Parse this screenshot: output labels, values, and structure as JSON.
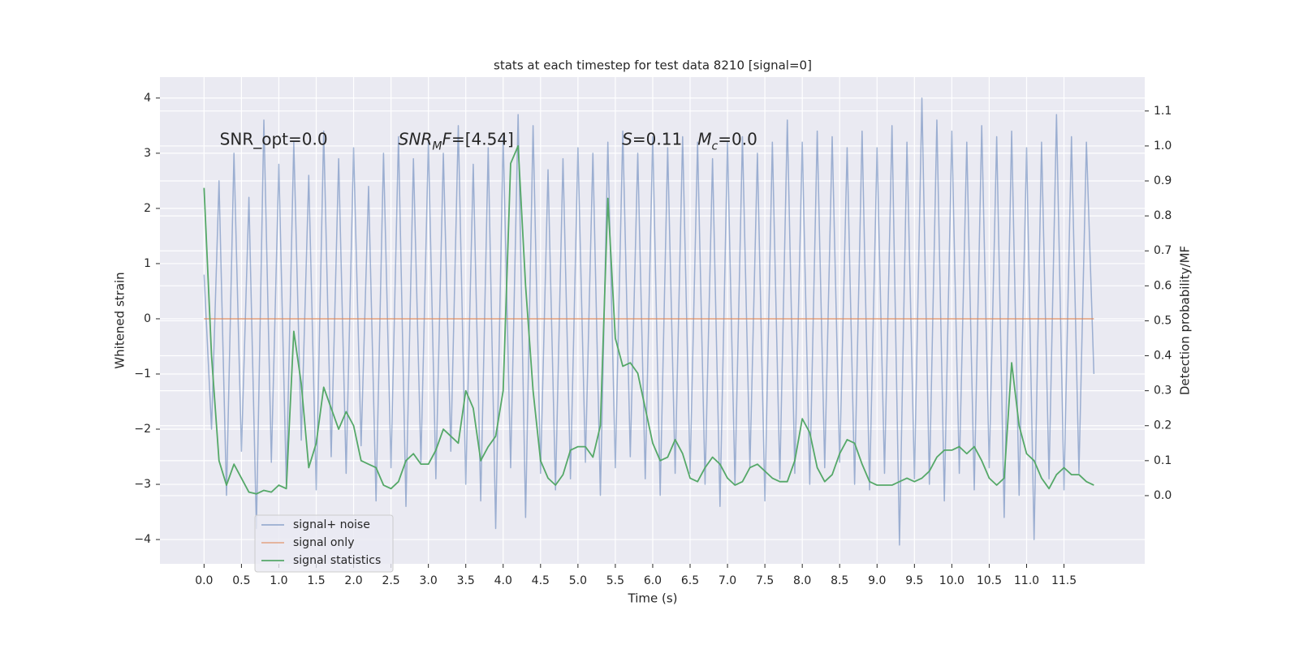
{
  "chart_data": {
    "type": "line",
    "title": "stats at each timestep for test data 8210 [signal=0]",
    "xlabel": "Time (s)",
    "ylabel": "Whitened strain",
    "y2label": "Detection probability/MF",
    "x": [
      0,
      0.1,
      0.2,
      0.3,
      0.4,
      0.5,
      0.6,
      0.7,
      0.8,
      0.9,
      1,
      1.1,
      1.2,
      1.3,
      1.4,
      1.5,
      1.6,
      1.7,
      1.8,
      1.9,
      2,
      2.1,
      2.2,
      2.3,
      2.4,
      2.5,
      2.6,
      2.7,
      2.8,
      2.9,
      3,
      3.1,
      3.2,
      3.3,
      3.4,
      3.5,
      3.6,
      3.7,
      3.8,
      3.9,
      4,
      4.1,
      4.2,
      4.3,
      4.4,
      4.5,
      4.6,
      4.7,
      4.8,
      4.9,
      5,
      5.1,
      5.2,
      5.3,
      5.4,
      5.5,
      5.6,
      5.7,
      5.8,
      5.9,
      6,
      6.1,
      6.2,
      6.3,
      6.4,
      6.5,
      6.6,
      6.7,
      6.8,
      6.9,
      7,
      7.1,
      7.2,
      7.3,
      7.4,
      7.5,
      7.6,
      7.7,
      7.8,
      7.9,
      8,
      8.1,
      8.2,
      8.3,
      8.4,
      8.5,
      8.6,
      8.7,
      8.8,
      8.9,
      9,
      9.1,
      9.2,
      9.3,
      9.4,
      9.5,
      9.6,
      9.7,
      9.8,
      9.9,
      10,
      10.1,
      10.2,
      10.3,
      10.4,
      10.5,
      10.6,
      10.7,
      10.8,
      10.9,
      11,
      11.1,
      11.2,
      11.3,
      11.4,
      11.5,
      11.6,
      11.7,
      11.8,
      11.9
    ],
    "series": [
      {
        "name": "signal+ noise",
        "color": "#4c72b0",
        "alpha": 0.5,
        "axis": "y",
        "values": [
          0.8,
          -2.0,
          2.5,
          -3.2,
          3.0,
          -2.4,
          2.2,
          -3.8,
          3.6,
          -2.6,
          2.8,
          -3.0,
          3.2,
          -2.2,
          2.6,
          -3.1,
          3.4,
          -2.5,
          2.9,
          -2.8,
          3.1,
          -2.3,
          2.4,
          -3.3,
          3.0,
          -2.7,
          3.3,
          -3.4,
          2.9,
          -2.6,
          3.2,
          -2.9,
          3.0,
          -2.4,
          3.5,
          -3.0,
          2.8,
          -3.3,
          3.1,
          -3.8,
          3.3,
          -2.7,
          3.7,
          -3.6,
          3.5,
          -2.8,
          2.7,
          -3.1,
          2.9,
          -2.9,
          3.1,
          -2.6,
          3.0,
          -3.2,
          3.2,
          -2.7,
          3.4,
          -2.5,
          3.0,
          -2.9,
          3.3,
          -3.2,
          3.1,
          -2.8,
          3.3,
          -2.8,
          3.2,
          -3.0,
          2.9,
          -3.4,
          3.2,
          -3.0,
          3.3,
          -2.7,
          3.0,
          -3.3,
          3.2,
          -2.9,
          3.6,
          -2.8,
          3.2,
          -3.0,
          3.4,
          -2.7,
          3.3,
          -2.6,
          3.1,
          -3.0,
          3.4,
          -3.1,
          3.1,
          -2.8,
          3.5,
          -4.1,
          3.2,
          -2.9,
          4.0,
          -3.0,
          3.6,
          -3.3,
          3.4,
          -2.8,
          3.2,
          -3.1,
          3.5,
          -2.7,
          3.3,
          -3.6,
          3.4,
          -3.2,
          3.1,
          -4.0,
          3.2,
          -2.9,
          3.7,
          -3.1,
          3.3,
          -2.8,
          3.2,
          -1.0
        ]
      },
      {
        "name": "signal only",
        "color": "#dd8452",
        "alpha": 0.6,
        "axis": "y",
        "values": [
          0,
          0,
          0,
          0,
          0,
          0,
          0,
          0,
          0,
          0,
          0,
          0,
          0,
          0,
          0,
          0,
          0,
          0,
          0,
          0,
          0,
          0,
          0,
          0,
          0,
          0,
          0,
          0,
          0,
          0,
          0,
          0,
          0,
          0,
          0,
          0,
          0,
          0,
          0,
          0,
          0,
          0,
          0,
          0,
          0,
          0,
          0,
          0,
          0,
          0,
          0,
          0,
          0,
          0,
          0,
          0,
          0,
          0,
          0,
          0,
          0,
          0,
          0,
          0,
          0,
          0,
          0,
          0,
          0,
          0,
          0,
          0,
          0,
          0,
          0,
          0,
          0,
          0,
          0,
          0,
          0,
          0,
          0,
          0,
          0,
          0,
          0,
          0,
          0,
          0,
          0,
          0,
          0,
          0,
          0,
          0,
          0,
          0,
          0,
          0,
          0,
          0,
          0,
          0,
          0,
          0,
          0,
          0,
          0,
          0,
          0,
          0,
          0,
          0,
          0,
          0,
          0,
          0,
          0,
          0
        ]
      },
      {
        "name": "signal statistics",
        "color": "#55a868",
        "alpha": 1,
        "axis": "y2",
        "values": [
          0.88,
          0.4,
          0.1,
          0.03,
          0.09,
          0.05,
          0.01,
          0.005,
          0.015,
          0.01,
          0.03,
          0.02,
          0.47,
          0.32,
          0.08,
          0.15,
          0.31,
          0.25,
          0.19,
          0.24,
          0.2,
          0.1,
          0.09,
          0.08,
          0.03,
          0.02,
          0.04,
          0.1,
          0.12,
          0.09,
          0.09,
          0.13,
          0.19,
          0.17,
          0.15,
          0.3,
          0.25,
          0.1,
          0.14,
          0.17,
          0.3,
          0.95,
          1.0,
          0.6,
          0.3,
          0.1,
          0.05,
          0.03,
          0.06,
          0.13,
          0.14,
          0.14,
          0.11,
          0.2,
          0.85,
          0.45,
          0.37,
          0.38,
          0.35,
          0.25,
          0.15,
          0.1,
          0.11,
          0.16,
          0.12,
          0.05,
          0.04,
          0.08,
          0.11,
          0.09,
          0.05,
          0.03,
          0.04,
          0.08,
          0.09,
          0.07,
          0.05,
          0.04,
          0.04,
          0.1,
          0.22,
          0.18,
          0.08,
          0.04,
          0.06,
          0.12,
          0.16,
          0.15,
          0.09,
          0.04,
          0.03,
          0.03,
          0.03,
          0.04,
          0.05,
          0.04,
          0.05,
          0.07,
          0.11,
          0.13,
          0.13,
          0.14,
          0.12,
          0.14,
          0.1,
          0.05,
          0.03,
          0.05,
          0.38,
          0.2,
          0.12,
          0.1,
          0.05,
          0.02,
          0.06,
          0.08,
          0.06,
          0.06,
          0.04,
          0.03
        ]
      }
    ],
    "xlim": [
      -0.59,
      12.58
    ],
    "xticks": [
      {
        "value": 0,
        "label": "0.0"
      },
      {
        "value": 0.5,
        "label": "0.5"
      },
      {
        "value": 1,
        "label": "1.0"
      },
      {
        "value": 1.5,
        "label": "1.5"
      },
      {
        "value": 2,
        "label": "2.0"
      },
      {
        "value": 2.5,
        "label": "2.5"
      },
      {
        "value": 3,
        "label": "3.0"
      },
      {
        "value": 3.5,
        "label": "3.5"
      },
      {
        "value": 4,
        "label": "4.0"
      },
      {
        "value": 4.5,
        "label": "4.5"
      },
      {
        "value": 5,
        "label": "5.0"
      },
      {
        "value": 5.5,
        "label": "5.5"
      },
      {
        "value": 6,
        "label": "6.0"
      },
      {
        "value": 6.5,
        "label": "6.5"
      },
      {
        "value": 7,
        "label": "7.0"
      },
      {
        "value": 7.5,
        "label": "7.5"
      },
      {
        "value": 8,
        "label": "8.0"
      },
      {
        "value": 8.5,
        "label": "8.5"
      },
      {
        "value": 9,
        "label": "9.0"
      },
      {
        "value": 9.5,
        "label": "9.5"
      },
      {
        "value": 10,
        "label": "10.0"
      },
      {
        "value": 10.5,
        "label": "10.5"
      },
      {
        "value": 11,
        "label": "11.0"
      },
      {
        "value": 11.5,
        "label": "11.5"
      }
    ],
    "ylim": [
      -4.44,
      4.38
    ],
    "yticks": [
      {
        "value": -4,
        "label": "−4"
      },
      {
        "value": -3,
        "label": "−3"
      },
      {
        "value": -2,
        "label": "−2"
      },
      {
        "value": -1,
        "label": "−1"
      },
      0,
      1,
      2,
      3,
      4
    ],
    "y2lim": [
      -0.195,
      1.197
    ],
    "y2ticks": [
      {
        "value": 0,
        "label": "0.0"
      },
      {
        "value": 0.1,
        "label": "0.1"
      },
      {
        "value": 0.2,
        "label": "0.2"
      },
      {
        "value": 0.3,
        "label": "0.3"
      },
      {
        "value": 0.4,
        "label": "0.4"
      },
      {
        "value": 0.5,
        "label": "0.5"
      },
      {
        "value": 0.6,
        "label": "0.6"
      },
      {
        "value": 0.7,
        "label": "0.7"
      },
      {
        "value": 0.8,
        "label": "0.8"
      },
      {
        "value": 0.9,
        "label": "0.9"
      },
      {
        "value": 1,
        "label": "1.0"
      },
      {
        "value": 1.1,
        "label": "1.1"
      }
    ],
    "grid": true,
    "legend": "lower left",
    "background": "#eaeaf2",
    "annotations": [
      {
        "x": 0.21,
        "y": 3.24,
        "parts": [
          {
            "text": "SNR_opt=0.0"
          }
        ]
      },
      {
        "x": 2.6,
        "y": 3.24,
        "parts": [
          {
            "text": "SNR",
            "italic": true
          },
          {
            "text": "M",
            "italic": true,
            "sub": true
          },
          {
            "text": "F",
            "italic": true
          },
          {
            "text": "=[4.54]"
          }
        ]
      },
      {
        "x": 5.59,
        "y": 3.24,
        "parts": [
          {
            "text": "S",
            "italic": true
          },
          {
            "text": "=0.11   "
          },
          {
            "text": "M",
            "italic": true
          },
          {
            "text": "c",
            "italic": true,
            "sub": true
          },
          {
            "text": "=0.0"
          }
        ]
      }
    ]
  }
}
